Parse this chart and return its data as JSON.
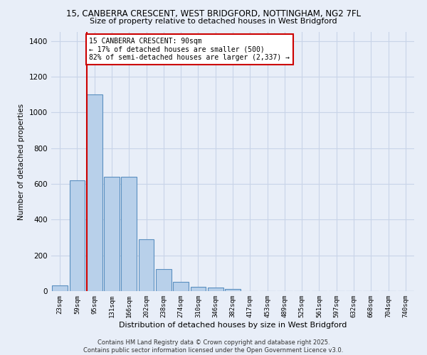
{
  "title_line1": "15, CANBERRA CRESCENT, WEST BRIDGFORD, NOTTINGHAM, NG2 7FL",
  "title_line2": "Size of property relative to detached houses in West Bridgford",
  "xlabel": "Distribution of detached houses by size in West Bridgford",
  "ylabel": "Number of detached properties",
  "categories": [
    "23sqm",
    "59sqm",
    "95sqm",
    "131sqm",
    "166sqm",
    "202sqm",
    "238sqm",
    "274sqm",
    "310sqm",
    "346sqm",
    "382sqm",
    "417sqm",
    "453sqm",
    "489sqm",
    "525sqm",
    "561sqm",
    "597sqm",
    "632sqm",
    "668sqm",
    "704sqm",
    "740sqm"
  ],
  "values": [
    30,
    620,
    1100,
    640,
    640,
    290,
    125,
    50,
    25,
    20,
    10,
    0,
    0,
    0,
    0,
    0,
    0,
    0,
    0,
    0,
    0
  ],
  "bar_color": "#b8d0ea",
  "bar_edge_color": "#5a8fc0",
  "red_line_index": 2,
  "annotation_title": "15 CANBERRA CRESCENT: 90sqm",
  "annotation_line1": "← 17% of detached houses are smaller (500)",
  "annotation_line2": "82% of semi-detached houses are larger (2,337) →",
  "annotation_box_color": "#ffffff",
  "annotation_box_edge": "#cc0000",
  "red_line_color": "#cc0000",
  "ylim": [
    0,
    1450
  ],
  "yticks": [
    0,
    200,
    400,
    600,
    800,
    1000,
    1200,
    1400
  ],
  "grid_color": "#c8d4e8",
  "background_color": "#e8eef8",
  "footer_line1": "Contains HM Land Registry data © Crown copyright and database right 2025.",
  "footer_line2": "Contains public sector information licensed under the Open Government Licence v3.0."
}
